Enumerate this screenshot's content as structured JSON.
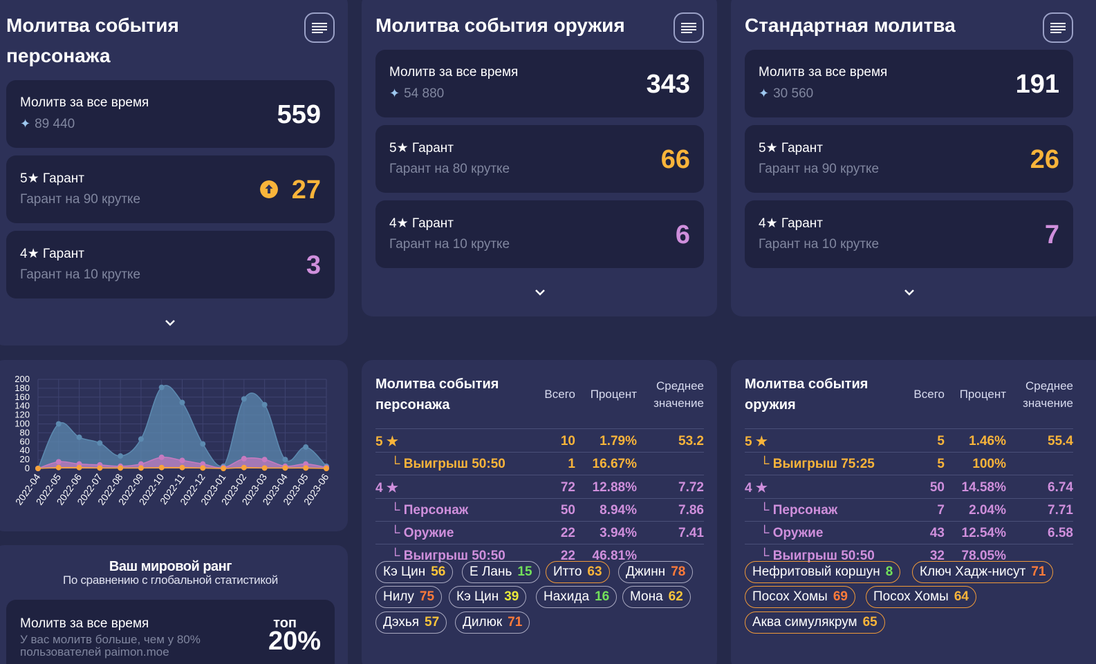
{
  "panels": {
    "character": {
      "title_line1": "Молитва события",
      "title_line2": "персонажа",
      "total_label": "Молитв за все время",
      "total_primos": "89 440",
      "total_value": "559",
      "five_label": "5★ Гарант",
      "five_sub": "Гарант на 90 крутке",
      "five_value": "27",
      "four_label": "4★ Гарант",
      "four_sub": "Гарант на 10 крутке",
      "four_value": "3"
    },
    "weapon": {
      "title": "Молитва события оружия",
      "total_label": "Молитв за все время",
      "total_primos": "54 880",
      "total_value": "343",
      "five_label": "5★ Гарант",
      "five_sub": "Гарант на 80 крутке",
      "five_value": "66",
      "four_label": "4★ Гарант",
      "four_sub": "Гарант на 10 крутке",
      "four_value": "6"
    },
    "standard": {
      "title": "Стандартная молитва",
      "total_label": "Молитв за все время",
      "total_primos": "30 560",
      "total_value": "191",
      "five_label": "5★ Гарант",
      "five_sub": "Гарант на 90 крутке",
      "five_value": "26",
      "four_label": "4★ Гарант",
      "four_sub": "Гарант на 10 крутке",
      "four_value": "7"
    }
  },
  "chart_data": {
    "type": "area",
    "categories": [
      "2022-04",
      "2022-05",
      "2022-06",
      "2022-07",
      "2022-08",
      "2022-09",
      "2022-10",
      "2022-11",
      "2022-12",
      "2023-01",
      "2023-02",
      "2023-03",
      "2023-04",
      "2023-05",
      "2023-06"
    ],
    "ylim": [
      0,
      200
    ],
    "yticks": [
      "0",
      "20",
      "40",
      "60",
      "80",
      "100",
      "120",
      "140",
      "160",
      "180",
      "200"
    ],
    "series": [
      {
        "values": [
          0,
          100,
          70,
          57,
          28,
          66,
          182,
          148,
          55,
          5,
          156,
          143,
          20,
          48,
          5
        ],
        "color": "#5c8ab0"
      },
      {
        "values": [
          0,
          15,
          10,
          8,
          5,
          10,
          25,
          18,
          10,
          2,
          22,
          20,
          5,
          10,
          2
        ],
        "color": "#c77ac0"
      },
      {
        "values": [
          0,
          2,
          2,
          1,
          1,
          1,
          2,
          2,
          1,
          0,
          2,
          1,
          1,
          1,
          0
        ],
        "color": "#f9a33a"
      }
    ]
  },
  "rank": {
    "title": "Ваш мировой ранг",
    "subtitle": "По сравнению с глобальной статистикой",
    "label": "Молитв за все время",
    "desc1": "У вас молитв больше, чем у 80%",
    "desc2": "пользователей paimon.moe",
    "top_label": "топ",
    "top_value": "20%"
  },
  "char_table": {
    "title1": "Молитва события",
    "title2": "персонажа",
    "col_total": "Всего",
    "col_pct": "Процент",
    "col_avg1": "Среднее",
    "col_avg2": "значение",
    "rows": [
      {
        "label": "5 ★",
        "total": "10",
        "pct": "1.79%",
        "avg": "53.2"
      },
      {
        "label": "└ Выигрыш 50:50",
        "total": "1",
        "pct": "16.67%",
        "avg": ""
      },
      {
        "label": "4 ★",
        "total": "72",
        "pct": "12.88%",
        "avg": "7.72"
      },
      {
        "label": "└ Персонаж",
        "total": "50",
        "pct": "8.94%",
        "avg": "7.86"
      },
      {
        "label": "└ Оружие",
        "total": "22",
        "pct": "3.94%",
        "avg": "7.41"
      },
      {
        "label": "└ Выигрыш 50:50",
        "total": "22",
        "pct": "46.81%",
        "avg": ""
      }
    ],
    "tags": [
      {
        "name": "Кэ Цин",
        "n": "56"
      },
      {
        "name": "Е Лань",
        "n": "15"
      },
      {
        "name": "Итто",
        "n": "63"
      },
      {
        "name": "Джинн",
        "n": "78"
      },
      {
        "name": "Нилу",
        "n": "75"
      },
      {
        "name": "Кэ Цин",
        "n": "39"
      },
      {
        "name": "Нахида",
        "n": "16"
      },
      {
        "name": "Мона",
        "n": "62"
      },
      {
        "name": "Дэхья",
        "n": "57"
      },
      {
        "name": "Дилюк",
        "n": "71"
      }
    ]
  },
  "weapon_table": {
    "title1": "Молитва события",
    "title2": "оружия",
    "col_total": "Всего",
    "col_pct": "Процент",
    "col_avg1": "Среднее",
    "col_avg2": "значение",
    "rows": [
      {
        "label": "5 ★",
        "total": "5",
        "pct": "1.46%",
        "avg": "55.4"
      },
      {
        "label": "└ Выигрыш 75:25",
        "total": "5",
        "pct": "100%",
        "avg": ""
      },
      {
        "label": "4 ★",
        "total": "50",
        "pct": "14.58%",
        "avg": "6.74"
      },
      {
        "label": "└ Персонаж",
        "total": "7",
        "pct": "2.04%",
        "avg": "7.71"
      },
      {
        "label": "└ Оружие",
        "total": "43",
        "pct": "12.54%",
        "avg": "6.58"
      },
      {
        "label": "└ Выигрыш 50:50",
        "total": "32",
        "pct": "78.05%",
        "avg": ""
      }
    ],
    "tags": [
      {
        "name": "Нефритовый коршун",
        "n": "8"
      },
      {
        "name": "Ключ Хадж-нисут",
        "n": "71"
      },
      {
        "name": "Посох Хомы",
        "n": "69"
      },
      {
        "name": "Посох Хомы",
        "n": "64"
      },
      {
        "name": "Аква симулякрум",
        "n": "65"
      }
    ]
  }
}
